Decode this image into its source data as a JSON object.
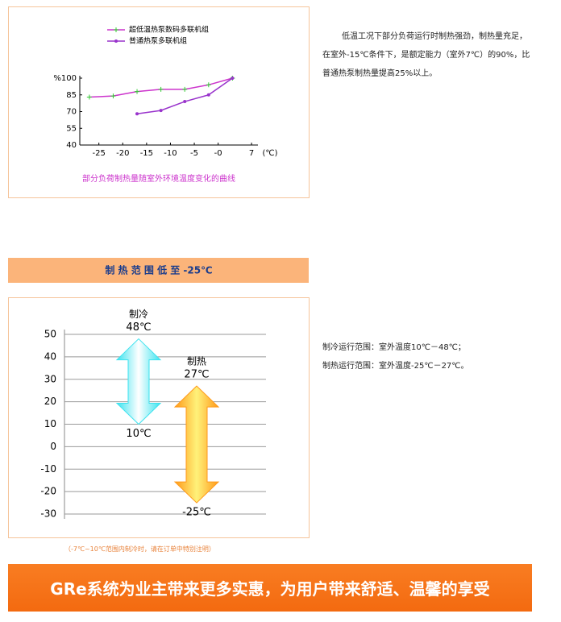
{
  "chart_data": [
    {
      "type": "line",
      "caption": "部分负荷制热量随室外环境温度变化的曲线",
      "x_unit": "(℃)",
      "xlim": [
        -29,
        8
      ],
      "xticks": [
        -25,
        -20,
        -15,
        -10,
        -5,
        {
          "value": 0,
          "label": "-0"
        },
        7
      ],
      "ylim": [
        40,
        100
      ],
      "yticks": [
        {
          "value": 100,
          "label": "%100"
        },
        85,
        70,
        55,
        40
      ],
      "series": [
        {
          "name": "超低温热泵数码多联机组",
          "color": "#cc33cc",
          "marker": "plus",
          "marker_color": "#33cc33",
          "x": [
            -27,
            -22,
            -17,
            -12,
            -7,
            -2,
            3
          ],
          "values": [
            83,
            84,
            88,
            90,
            90,
            94,
            100
          ]
        },
        {
          "name": "普通热泵多联机组",
          "color": "#9933cc",
          "marker": "dot",
          "marker_color": "#9933cc",
          "x": [
            -17,
            -12,
            -7,
            -2,
            3
          ],
          "values": [
            68,
            71,
            79,
            85,
            100
          ]
        }
      ]
    },
    {
      "type": "range",
      "title": "制 热 范 围 低 至 -25℃",
      "ylim": [
        -30,
        50
      ],
      "yticks": [
        50,
        40,
        30,
        20,
        10,
        0,
        -10,
        -20,
        -30
      ],
      "grid": true,
      "categories": [
        "制冷",
        "制热"
      ],
      "high": [
        48,
        27
      ],
      "low": [
        10,
        -25
      ],
      "high_labels": [
        "48℃",
        "27℃"
      ],
      "low_labels": [
        "10℃",
        "-25℃"
      ],
      "colors": [
        "#3de3ef",
        "#ff9a1a"
      ]
    }
  ],
  "intro": "低温工况下部分负荷运行时制热强劲，制热量充足， 在室外-15℃条件下，是额定能力（室外7℃）的90%，比普通热泵制热量提高25%以上。",
  "range_notes": [
    "制冷运行范围：室外温度10℃－48℃；",
    "制热运行范围：室外温度-25℃－27℃。"
  ],
  "footnote": "（-7℃~10℃范围内制冷时，请在订单中特别注明）",
  "slogan": "GRe系统为业主带来更多实惠，为用户带来舒适、温馨的享受"
}
